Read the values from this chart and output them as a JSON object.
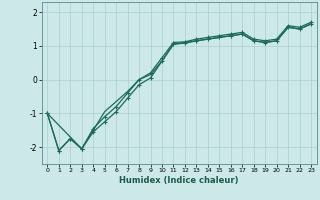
{
  "xlabel": "Humidex (Indice chaleur)",
  "ylabel": "",
  "bg_color": "#cce8e8",
  "grid_color": "#aacfcf",
  "line_color": "#1a6b5a",
  "xlim": [
    -0.5,
    23.5
  ],
  "ylim": [
    -2.5,
    2.3
  ],
  "yticks": [
    -2,
    -1,
    0,
    1,
    2
  ],
  "xticks": [
    0,
    1,
    2,
    3,
    4,
    5,
    6,
    7,
    8,
    9,
    10,
    11,
    12,
    13,
    14,
    15,
    16,
    17,
    18,
    19,
    20,
    21,
    22,
    23
  ],
  "s1_x": [
    0,
    1,
    2,
    3,
    4,
    5,
    6,
    7,
    8,
    9,
    10,
    11,
    12,
    13,
    14,
    15,
    16,
    17,
    18,
    19,
    20,
    21,
    22,
    23
  ],
  "s1_y": [
    -1.0,
    -2.1,
    -1.75,
    -2.05,
    -1.55,
    -1.25,
    -0.95,
    -0.55,
    -0.15,
    0.05,
    0.55,
    1.05,
    1.08,
    1.15,
    1.2,
    1.25,
    1.3,
    1.35,
    1.15,
    1.1,
    1.15,
    1.55,
    1.5,
    1.65
  ],
  "s2_x": [
    0,
    1,
    2,
    3,
    4,
    5,
    6,
    7,
    8,
    9,
    10,
    11,
    12,
    13,
    14,
    15,
    16,
    17,
    18,
    19,
    20,
    21,
    22,
    23
  ],
  "s2_y": [
    -1.0,
    -2.1,
    -1.75,
    -2.05,
    -1.45,
    -1.1,
    -0.8,
    -0.4,
    -0.0,
    0.2,
    0.65,
    1.1,
    1.12,
    1.2,
    1.25,
    1.3,
    1.35,
    1.4,
    1.2,
    1.15,
    1.2,
    1.6,
    1.55,
    1.7
  ],
  "s3_x": [
    0,
    3,
    5,
    6,
    7,
    8,
    9,
    10,
    11,
    12,
    13,
    14,
    15,
    16,
    17,
    18,
    19,
    20,
    21,
    22,
    23
  ],
  "s3_y": [
    -1.0,
    -2.05,
    -0.95,
    -0.65,
    -0.35,
    -0.0,
    0.15,
    0.55,
    1.05,
    1.1,
    1.15,
    1.2,
    1.25,
    1.3,
    1.35,
    1.15,
    1.1,
    1.15,
    1.55,
    1.5,
    1.65
  ],
  "marker": "+",
  "markersize": 3,
  "linewidth": 0.9
}
